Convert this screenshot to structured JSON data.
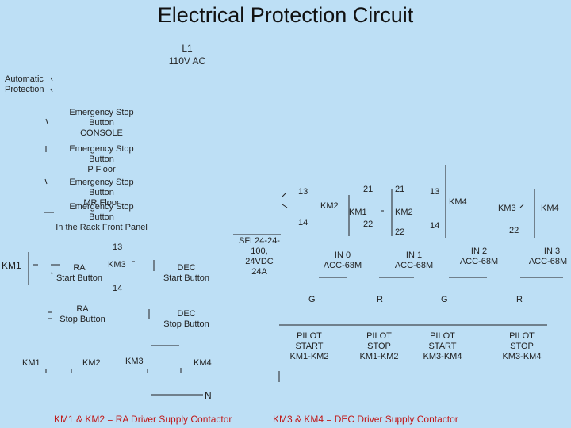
{
  "title": "Electrical Protection Circuit",
  "supply": {
    "line": "L1",
    "voltage": "110V AC",
    "neutral": "N"
  },
  "protection_chain": [
    {
      "id": "auto",
      "label": "Automatic\nProtection"
    },
    {
      "id": "estop_console",
      "label": "Emergency Stop Button\nCONSOLE"
    },
    {
      "id": "estop_pfloor",
      "label": "Emergency Stop Button\nP Floor"
    },
    {
      "id": "estop_mrfloor",
      "label": "Emergency Stop Button\nMR Floor"
    },
    {
      "id": "estop_rack",
      "label": "Emergency Stop Button\nIn  the Rack Front Panel"
    }
  ],
  "left_circuit": {
    "km1_label": "KM1",
    "pin13": "13",
    "pin14": "14",
    "ra_start": "RA\nStart Button",
    "km3_label": "KM3",
    "dec_start": "DEC\nStart Button",
    "ra_stop": "RA\nStop Button",
    "dec_stop": "DEC\nStop Button",
    "coils": [
      "KM1",
      "KM2",
      "KM3",
      "KM4"
    ]
  },
  "power_supply": {
    "label": "SFL24-24-100,\n24VDC\n24A"
  },
  "right_circuit": {
    "pins": {
      "p13a": "13",
      "p21a": "21",
      "p21b": "21",
      "p13b": "13",
      "p14a": "14",
      "p22a": "22",
      "p22b": "22",
      "p14b": "14",
      "p22c": "22"
    },
    "contacts": {
      "km2a": "KM2",
      "km1": "KM1",
      "km2b": "KM2",
      "km4a": "KM4",
      "km3": "KM3",
      "km4b": "KM4"
    }
  },
  "inputs": [
    {
      "name": "IN 0",
      "device": "ACC-68M"
    },
    {
      "name": "IN 1",
      "device": "ACC-68M"
    },
    {
      "name": "IN 2",
      "device": "ACC-68M"
    },
    {
      "name": "IN 3",
      "device": "ACC-68M"
    }
  ],
  "lamps": [
    {
      "letter": "G",
      "pilot": "PILOT\nSTART\nKM1-KM2"
    },
    {
      "letter": "R",
      "pilot": "PILOT\nSTOP\nKM1-KM2"
    },
    {
      "letter": "G",
      "pilot": "PILOT\nSTART\nKM3-KM4"
    },
    {
      "letter": "R",
      "pilot": "PILOT\nSTOP\nKM3-KM4"
    }
  ],
  "footer": {
    "left_note": "KM1 & KM2 = RA Driver Supply Contactor",
    "right_note": "KM3 & KM4 = DEC Driver Supply Contactor",
    "color": "#c01818"
  }
}
